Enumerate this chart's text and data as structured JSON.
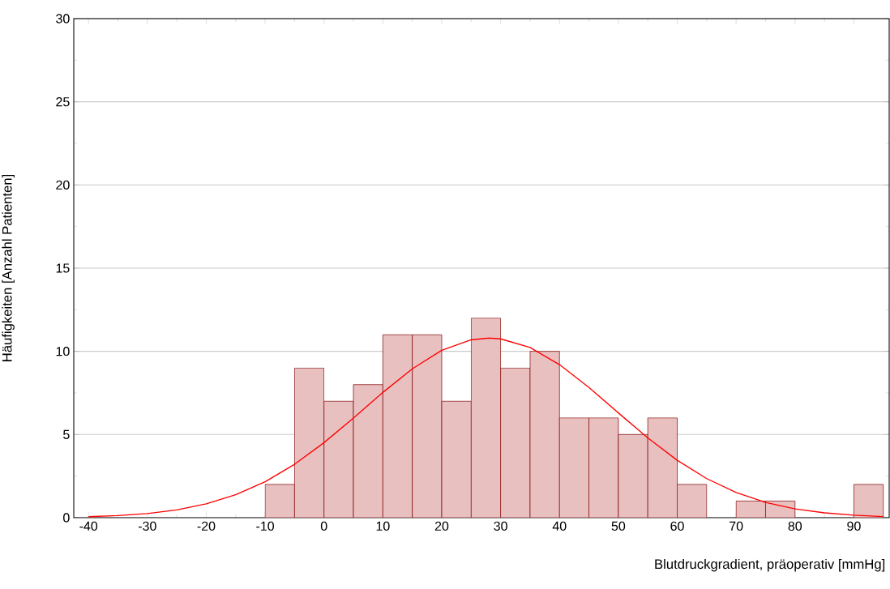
{
  "chart_data": {
    "type": "histogram",
    "xlabel": "Blutdruckgradient, präoperativ [mmHg]",
    "ylabel": "Häufigkeiten [Anzahl Patienten]",
    "bins": [
      -10,
      -5,
      0,
      5,
      10,
      15,
      20,
      25,
      30,
      35,
      40,
      45,
      50,
      55,
      60,
      65,
      70,
      75,
      80,
      85,
      90,
      95
    ],
    "values": [
      2,
      9,
      7,
      8,
      11,
      11,
      7,
      12,
      9,
      10,
      6,
      6,
      5,
      6,
      2,
      0,
      1,
      1,
      0,
      0,
      2
    ],
    "color": "#e9c0c0",
    "series": [
      {
        "type": "line",
        "color": "#ff0000",
        "x": [
          -40,
          -35,
          -30,
          -25,
          -20,
          -15,
          -10,
          -5,
          0,
          5,
          10,
          15,
          20,
          25,
          28,
          30,
          35,
          40,
          45,
          50,
          55,
          60,
          65,
          70,
          75,
          80,
          85,
          90,
          95
        ],
        "values": [
          0.06,
          0.13,
          0.25,
          0.47,
          0.83,
          1.38,
          2.16,
          3.21,
          4.51,
          5.99,
          7.53,
          8.95,
          10.06,
          10.69,
          10.8,
          10.75,
          10.23,
          9.2,
          7.83,
          6.3,
          4.8,
          3.45,
          2.35,
          1.52,
          0.92,
          0.53,
          0.29,
          0.15,
          0.07
        ]
      }
    ],
    "xlim": [
      -42.5,
      96
    ],
    "xticks": [
      -40,
      -30,
      -20,
      -10,
      0,
      10,
      20,
      30,
      40,
      50,
      60,
      70,
      80,
      90
    ],
    "ylim": [
      0,
      30
    ],
    "yticks": [
      0,
      5,
      10,
      15,
      20,
      25,
      30
    ],
    "grid": "y",
    "legend": false,
    "marker": "none",
    "line_style": "solid"
  }
}
